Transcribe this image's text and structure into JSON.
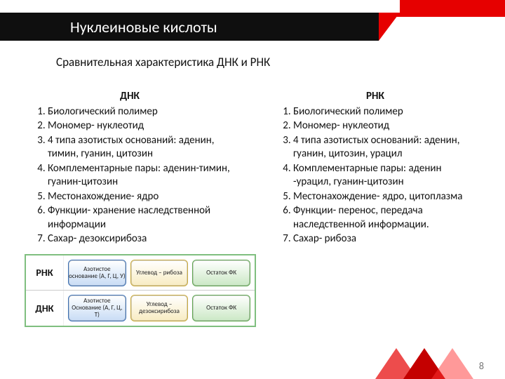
{
  "title": "Нуклеиновые кислоты",
  "subtitle": "Сравнительная характеристика ДНК и РНК",
  "left": {
    "heading": "ДНК",
    "items": [
      "Биологический полимер",
      "Мономер- нуклеотид",
      "4 типа азотистых оснований: аденин, тимин, гуанин, цитозин",
      "Комплементарные пары: аденин-тимин, гуанин-цитозин",
      "Местонахождение- ядро",
      "Функции- хранение наследственной информации",
      "Сахар- дезоксирибоза"
    ]
  },
  "right": {
    "heading": "РНК",
    "items": [
      "Биологический полимер",
      "Мономер- нуклеотид",
      "4 типа азотистых оснований: аденин, гуанин, цитозин, урацил",
      "Комплементарные пары: аденин -урацил, гуанин-цитозин",
      "Местонахождение- ядро, цитоплазма",
      "Функции- перенос, передача наследственной информации.",
      "Сахар- рибоза"
    ]
  },
  "diagram": {
    "rows": [
      {
        "label": "РНК",
        "boxes": [
          {
            "text": "Азотистое основание (А, Г, Ц, У)",
            "bg": "#c8dcf5",
            "border": "#3b6fb3"
          },
          {
            "text": "Углевод – рибоза",
            "bg": "#f8ecc2",
            "border": "#c9a93a"
          },
          {
            "text": "Остаток ФК",
            "bg": "#cbe8c5",
            "border": "#5fa64f"
          }
        ]
      },
      {
        "label": "ДНК",
        "boxes": [
          {
            "text": "Азотистое Основание (А, Г, Ц, Т)",
            "bg": "#c8dcf5",
            "border": "#3b6fb3"
          },
          {
            "text": "Углевод – дезоксирибоза",
            "bg": "#f8ecc2",
            "border": "#c9a93a"
          },
          {
            "text": "Остаток ФК",
            "bg": "#cbe8c5",
            "border": "#5fa64f"
          }
        ]
      }
    ]
  },
  "page": "8",
  "colors": {
    "header_bg": "#0f0f0f",
    "accent": "#e60000"
  }
}
